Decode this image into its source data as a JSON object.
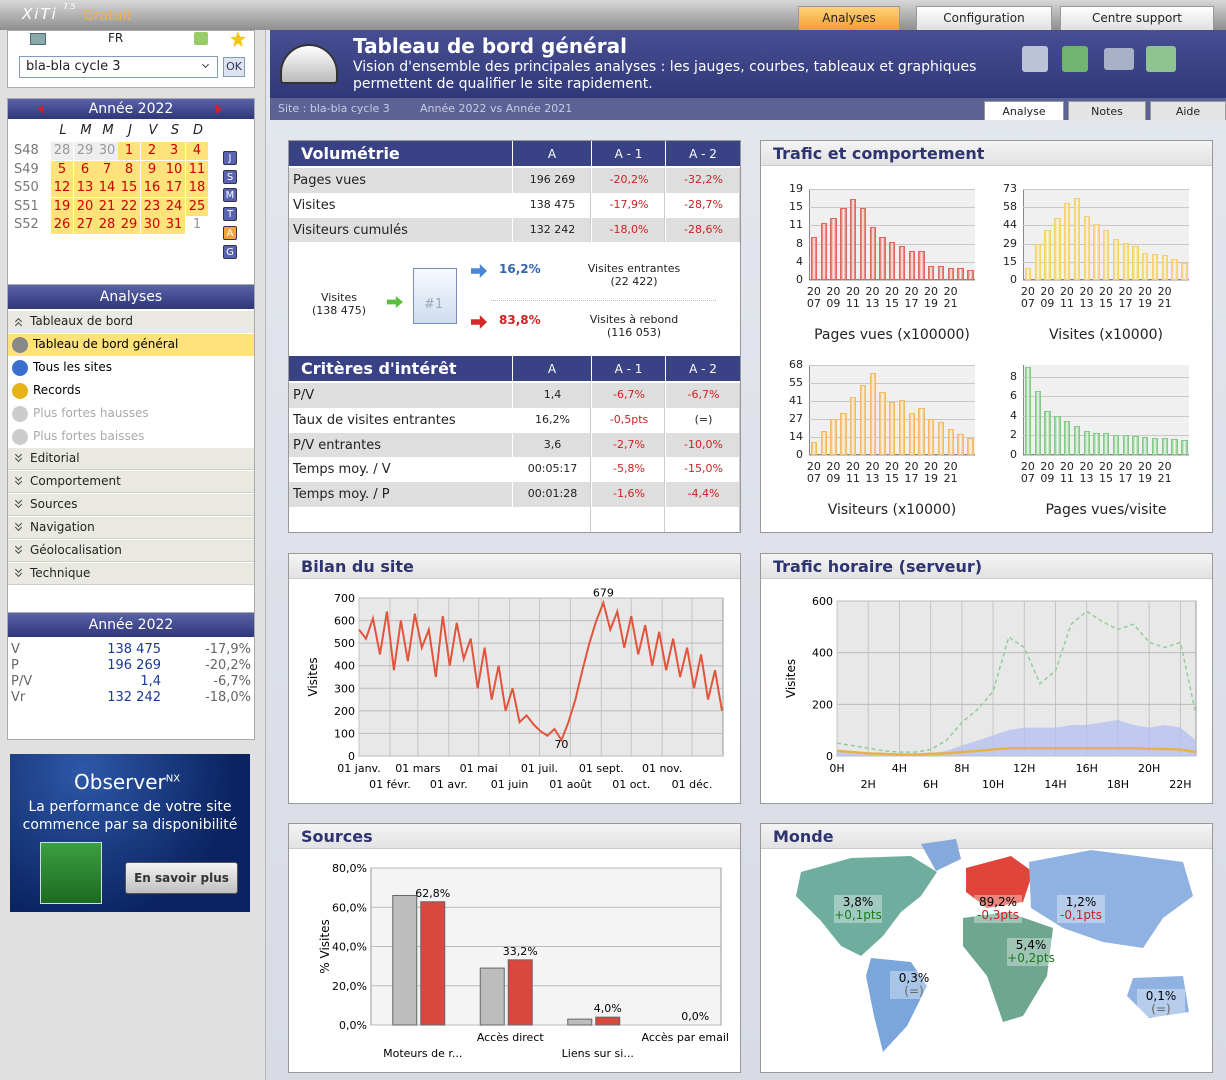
{
  "topbar": {
    "logo": "XiTi",
    "version": "7.5",
    "edition": "Gratuit",
    "tabs": [
      "Analyses",
      "Configuration",
      "Centre support"
    ]
  },
  "sidebar": {
    "lang": "FR",
    "site": "bla-bla cycle 3",
    "ok": "OK",
    "calendar": {
      "title": "Année 2022",
      "weekdays": [
        "L",
        "M",
        "M",
        "J",
        "V",
        "S",
        "D"
      ],
      "weeks": [
        {
          "label": "S48",
          "days": [
            "28",
            "29",
            "30",
            "1",
            "2",
            "3",
            "4"
          ]
        },
        {
          "label": "S49",
          "days": [
            "5",
            "6",
            "7",
            "8",
            "9",
            "10",
            "11"
          ]
        },
        {
          "label": "S50",
          "days": [
            "12",
            "13",
            "14",
            "15",
            "16",
            "17",
            "18"
          ]
        },
        {
          "label": "S51",
          "days": [
            "19",
            "20",
            "21",
            "22",
            "23",
            "24",
            "25"
          ]
        },
        {
          "label": "S52",
          "days": [
            "26",
            "27",
            "28",
            "29",
            "30",
            "31",
            "1"
          ]
        }
      ],
      "icons": [
        "J",
        "S",
        "M",
        "T",
        "A",
        "G"
      ]
    },
    "menu": {
      "title": "Analyses",
      "items": [
        {
          "label": "Tableaux de bord",
          "kind": "open"
        },
        {
          "label": "Tableau de bord général",
          "kind": "active"
        },
        {
          "label": "Tous les sites",
          "kind": "item"
        },
        {
          "label": "Records",
          "kind": "item"
        },
        {
          "label": "Plus fortes hausses",
          "kind": "disabled"
        },
        {
          "label": "Plus fortes baisses",
          "kind": "disabled"
        },
        {
          "label": "Editorial",
          "kind": "group"
        },
        {
          "label": "Comportement",
          "kind": "group"
        },
        {
          "label": "Sources",
          "kind": "group"
        },
        {
          "label": "Navigation",
          "kind": "group"
        },
        {
          "label": "Géolocalisation",
          "kind": "group"
        },
        {
          "label": "Technique",
          "kind": "group"
        }
      ]
    },
    "summary": {
      "title": "Année 2022",
      "rows": [
        [
          "V",
          "138 475",
          "-17,9%"
        ],
        [
          "P",
          "196 269",
          "-20,2%"
        ],
        [
          "P/V",
          "1,4",
          "-6,7%"
        ],
        [
          "Vr",
          "132 242",
          "-18,0%"
        ]
      ]
    },
    "ad": {
      "brand": "Observer",
      "sup": "NX",
      "text": "La performance de votre site commence par sa disponibilité",
      "button": "En savoir plus"
    }
  },
  "header": {
    "title": "Tableau de bord général",
    "subtitle": "Vision d'ensemble des principales analyses : les jauges, courbes, tableaux et graphiques permettent de qualifier le site rapidement.",
    "site": "Site : bla-bla cycle 3",
    "period": "Année 2022 vs Année 2021",
    "tabs": [
      "Analyse",
      "Notes",
      "Aide"
    ]
  },
  "volumetrie": {
    "title": "Volumétrie",
    "columns": [
      "A",
      "A - 1",
      "A - 2"
    ],
    "rows": [
      [
        "Pages vues",
        "196 269",
        "-20,2%",
        "-32,2%"
      ],
      [
        "Visites",
        "138 475",
        "-17,9%",
        "-28,7%"
      ],
      [
        "Visiteurs cumulés",
        "132 242",
        "-18,0%",
        "-28,6%"
      ]
    ]
  },
  "flow": {
    "visits": "Visites",
    "visits_total": "(138 475)",
    "icon": "#1",
    "in_pct": "16,2%",
    "in_label": "Visites entrantes",
    "in_count": "(22 422)",
    "out_pct": "83,8%",
    "out_label": "Visites à rebond",
    "out_count": "(116 053)"
  },
  "criteres": {
    "title": "Critères d'intérêt",
    "columns": [
      "A",
      "A - 1",
      "A - 2"
    ],
    "rows": [
      [
        "P/V",
        "1,4",
        "-6,7%",
        "-6,7%"
      ],
      [
        "Taux de visites entrantes",
        "16,2%",
        "-0,5pts",
        "(=)"
      ],
      [
        "P/V entrantes",
        "3,6",
        "-2,7%",
        "-10,0%"
      ],
      [
        "Temps moy. / V",
        "00:05:17",
        "-5,8%",
        "-15,0%"
      ],
      [
        "Temps moy. / P",
        "00:01:28",
        "-1,6%",
        "-4,4%"
      ]
    ]
  },
  "panels": {
    "trafic": "Trafic et comportement",
    "bilan": "Bilan du site",
    "horaire": "Trafic horaire (serveur)",
    "sources": "Sources",
    "monde": "Monde"
  },
  "monde": {
    "labels": [
      {
        "value": "3,8%",
        "change": "+0,1pts"
      },
      {
        "value": "89,2%",
        "change": "-0,3pts"
      },
      {
        "value": "1,2%",
        "change": "-0,1pts"
      },
      {
        "value": "5,4%",
        "change": "+0,2pts"
      },
      {
        "value": "0,3%",
        "change": "(=)"
      },
      {
        "value": "0,1%",
        "change": "(=)"
      }
    ]
  },
  "chart_data": [
    {
      "type": "minibar",
      "title": "Pages vues (x100000)",
      "color": "#e0685c",
      "categories": [
        "20 07",
        null,
        "20 09",
        null,
        "20 11",
        null,
        "20 13",
        null,
        "20 15",
        null,
        "20 17",
        null,
        "20 19",
        null,
        "20 21",
        null,
        null
      ],
      "values": [
        9,
        12,
        13,
        15,
        17,
        15,
        11,
        9,
        8,
        7,
        6,
        6,
        3,
        3,
        2.6,
        2.5,
        2
      ],
      "ylim": [
        0,
        19
      ],
      "yticks": [
        0,
        {
          "value": 3.8,
          "label": "4"
        },
        {
          "value": 7.6,
          "label": "8"
        },
        {
          "value": 11.4,
          "label": "11"
        },
        {
          "value": 15.2,
          "label": "15"
        },
        19
      ],
      "grid": true
    },
    {
      "type": "minibar",
      "title": "Visites (x10000)",
      "color": "#f5d166",
      "categories": [
        "20 07",
        null,
        "20 09",
        null,
        "20 11",
        null,
        "20 13",
        null,
        "20 15",
        null,
        "20 17",
        null,
        "20 19",
        null,
        "20 21",
        null,
        null
      ],
      "values": [
        10,
        29,
        40,
        50,
        62,
        66,
        51,
        45,
        40,
        33,
        30,
        27,
        22,
        21,
        20,
        17,
        14
      ],
      "ylim": [
        0,
        73
      ],
      "yticks": [
        0,
        {
          "value": 14.6,
          "label": "15"
        },
        {
          "value": 29.2,
          "label": "29"
        },
        {
          "value": 43.8,
          "label": "44"
        },
        {
          "value": 58.4,
          "label": "58"
        },
        73
      ],
      "grid": true
    },
    {
      "type": "minibar",
      "title": "Visiteurs (x10000)",
      "color": "#f6bb62",
      "categories": [
        "20 07",
        null,
        "20 09",
        null,
        "20 11",
        null,
        "20 13",
        null,
        "20 15",
        null,
        "20 17",
        null,
        "20 19",
        null,
        "20 21",
        null,
        null
      ],
      "values": [
        10,
        18,
        27,
        32,
        44,
        53,
        62,
        48,
        40,
        42,
        32,
        36,
        27,
        25,
        20,
        16,
        13
      ],
      "ylim": [
        0,
        68.4
      ],
      "yticks": [
        0,
        {
          "value": 13.68,
          "label": "14"
        },
        {
          "value": 27.36,
          "label": "27"
        },
        {
          "value": 41.04,
          "label": "41"
        },
        {
          "value": 54.72,
          "label": "55"
        },
        {
          "value": 68.4,
          "label": "68"
        }
      ],
      "grid": true
    },
    {
      "type": "minibar",
      "title": "Pages vues/visite",
      "color": "#82cc86",
      "categories": [
        "20 07",
        null,
        "20 09",
        null,
        "20 11",
        null,
        "20 13",
        null,
        "20 15",
        null,
        "20 17",
        null,
        "20 19",
        null,
        "20 21",
        null,
        null
      ],
      "values": [
        9,
        6.5,
        4.5,
        4,
        3.5,
        3,
        2.5,
        2.3,
        2.2,
        2,
        2,
        1.9,
        1.8,
        1.7,
        1.7,
        1.6,
        1.5
      ],
      "ylim": [
        0,
        9.2
      ],
      "yticks": [
        0,
        2,
        4,
        6,
        8
      ],
      "grid": true
    },
    {
      "type": "line",
      "y_label": "Visites",
      "color": "#e2553d",
      "x": [
        1,
        8,
        15,
        22,
        29,
        36,
        43,
        50,
        57,
        64,
        71,
        78,
        85,
        92,
        99,
        106,
        113,
        120,
        127,
        134,
        141,
        148,
        155,
        162,
        169,
        176,
        183,
        190,
        197,
        204,
        211,
        218,
        225,
        232,
        239,
        246,
        253,
        260,
        267,
        274,
        281,
        288,
        295,
        302,
        309,
        316,
        323,
        330,
        337,
        344,
        351,
        358,
        365
      ],
      "values": [
        560,
        520,
        610,
        450,
        640,
        380,
        600,
        420,
        630,
        480,
        560,
        350,
        620,
        400,
        590,
        430,
        520,
        300,
        480,
        250,
        400,
        200,
        300,
        150,
        180,
        140,
        110,
        90,
        120,
        70,
        150,
        250,
        380,
        500,
        600,
        679,
        560,
        640,
        480,
        620,
        450,
        580,
        400,
        550,
        380,
        520,
        350,
        480,
        300,
        450,
        250,
        380,
        200
      ],
      "annotations": [
        "679",
        "70"
      ],
      "xlim": [
        1,
        366
      ],
      "xticks": [
        {
          "value": 1,
          "label": "01 janv."
        },
        {
          "value": 32,
          "label": "01 févr."
        },
        {
          "value": 60,
          "label": "01 mars"
        },
        {
          "value": 91,
          "label": "01 avr."
        },
        {
          "value": 121,
          "label": "01 mai"
        },
        {
          "value": 152,
          "label": "01 juin"
        },
        {
          "value": 182,
          "label": "01 juil."
        },
        {
          "value": 213,
          "label": "01 août"
        },
        {
          "value": 244,
          "label": "01 sept."
        },
        {
          "value": 274,
          "label": "01 oct."
        },
        {
          "value": 305,
          "label": "01 nov."
        },
        {
          "value": 335,
          "label": "01 déc."
        }
      ],
      "ylim": [
        0,
        700
      ],
      "yticks": [
        0,
        100,
        200,
        300,
        400,
        500,
        600,
        700
      ],
      "grid": true
    },
    {
      "type": "multiline",
      "y_label": "Visites",
      "x": [
        0,
        1,
        2,
        3,
        4,
        5,
        6,
        7,
        8,
        9,
        10,
        11,
        12,
        13,
        14,
        15,
        16,
        17,
        18,
        19,
        20,
        21,
        22,
        23
      ],
      "series": [
        {
          "color": "#b4bff2",
          "fill": true,
          "values": [
            20,
            15,
            10,
            5,
            5,
            5,
            10,
            20,
            40,
            60,
            80,
            100,
            110,
            110,
            110,
            120,
            120,
            130,
            140,
            120,
            110,
            120,
            110,
            60
          ]
        },
        {
          "color": "#e8b24a",
          "values": [
            20,
            15,
            10,
            8,
            6,
            6,
            8,
            10,
            15,
            20,
            25,
            30,
            30,
            30,
            30,
            30,
            30,
            30,
            30,
            30,
            28,
            27,
            25,
            15
          ]
        },
        {
          "color": "#8fcf98",
          "dash": true,
          "values": [
            50,
            40,
            30,
            20,
            15,
            15,
            25,
            60,
            130,
            180,
            250,
            460,
            420,
            280,
            330,
            510,
            560,
            520,
            490,
            510,
            440,
            420,
            440,
            160
          ]
        }
      ],
      "xlim": [
        0,
        23
      ],
      "xticks": [
        {
          "value": 0,
          "label": "0H"
        },
        {
          "value": 2,
          "label": "2H"
        },
        {
          "value": 4,
          "label": "4H"
        },
        {
          "value": 6,
          "label": "6H"
        },
        {
          "value": 8,
          "label": "8H"
        },
        {
          "value": 10,
          "label": "10H"
        },
        {
          "value": 12,
          "label": "12H"
        },
        {
          "value": 14,
          "label": "14H"
        },
        {
          "value": 16,
          "label": "16H"
        },
        {
          "value": 18,
          "label": "18H"
        },
        {
          "value": 20,
          "label": "20H"
        },
        {
          "value": 22,
          "label": "22H"
        }
      ],
      "ylim": [
        0,
        600
      ],
      "yticks": [
        0,
        200,
        400,
        600
      ],
      "grid": true
    },
    {
      "type": "groupbar",
      "y_label": "% Visites",
      "categories": [
        "Moteurs de r...",
        "Accès direct",
        "Liens sur si...",
        "Accès par email"
      ],
      "series": [
        {
          "color": "#bdbdbd",
          "values": [
            66,
            29,
            3,
            0
          ]
        },
        {
          "color": "#d9473d",
          "values": [
            62.8,
            33.2,
            4.0,
            0.0
          ],
          "value_labels": [
            "62,8%",
            "33,2%",
            "4,0%",
            "0,0%"
          ]
        }
      ],
      "ylim": [
        0,
        80
      ],
      "yticks": [
        {
          "value": 0,
          "label": "0,0%"
        },
        {
          "value": 20,
          "label": "20,0%"
        },
        {
          "value": 40,
          "label": "40,0%"
        },
        {
          "value": 60,
          "label": "60,0%"
        },
        {
          "value": 80,
          "label": "80,0%"
        }
      ],
      "grid": true
    }
  ]
}
